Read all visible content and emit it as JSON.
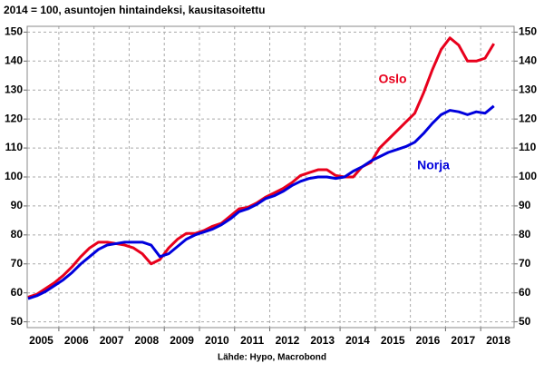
{
  "chart_data": {
    "type": "line",
    "title": "2014 = 100, asuntojen hintaindeksi, kausitasoitettu",
    "source": "Lähde: Hypo, Macrobond",
    "x": [
      2005.125,
      2005.375,
      2005.625,
      2005.875,
      2006.125,
      2006.375,
      2006.625,
      2006.875,
      2007.125,
      2007.375,
      2007.625,
      2007.875,
      2008.125,
      2008.375,
      2008.625,
      2008.875,
      2009.125,
      2009.375,
      2009.625,
      2009.875,
      2010.125,
      2010.375,
      2010.625,
      2010.875,
      2011.125,
      2011.375,
      2011.625,
      2011.875,
      2012.125,
      2012.375,
      2012.625,
      2012.875,
      2013.125,
      2013.375,
      2013.625,
      2013.875,
      2014.125,
      2014.375,
      2014.625,
      2014.875,
      2015.125,
      2015.375,
      2015.625,
      2015.875,
      2016.125,
      2016.375,
      2016.625,
      2016.875,
      2017.125,
      2017.375,
      2017.625,
      2017.875,
      2018.125,
      2018.375
    ],
    "series": [
      {
        "name": "Oslo",
        "color": "#e8001c",
        "values": [
          58.5,
          59.5,
          61.5,
          63.5,
          66,
          69,
          72.5,
          75.5,
          77.5,
          77.5,
          77,
          76.5,
          75.5,
          73.5,
          70,
          71.5,
          75.5,
          78.5,
          80.5,
          80.5,
          81.5,
          83,
          84,
          86.5,
          89,
          89.5,
          91,
          93,
          94.5,
          96,
          98,
          100.5,
          101.5,
          102.5,
          102.5,
          100.5,
          100,
          100,
          103.5,
          105,
          110,
          113,
          116,
          119,
          122,
          129,
          137,
          144,
          148,
          145.5,
          140,
          140,
          141,
          146
        ]
      },
      {
        "name": "Norja",
        "color": "#0000dd",
        "values": [
          58,
          59,
          60.5,
          62.5,
          64.5,
          67,
          70,
          72.5,
          75,
          76.5,
          77,
          77.5,
          77.5,
          77.5,
          76.5,
          72.5,
          73.5,
          76,
          78.5,
          80,
          81,
          82,
          83.5,
          85.5,
          88,
          89,
          90.5,
          92.5,
          93.5,
          95,
          97,
          98.5,
          99.5,
          100,
          100,
          99.5,
          100,
          102,
          103.5,
          105.5,
          107,
          108.5,
          109.5,
          110.5,
          112,
          115,
          118.5,
          121.5,
          123,
          122.5,
          121.5,
          122.5,
          122,
          124.5
        ]
      }
    ],
    "xlim": [
      2005.1,
      2018.95
    ],
    "xticks": [
      {
        "value": 2005.5,
        "label": "2005"
      },
      {
        "value": 2006.5,
        "label": "2006"
      },
      {
        "value": 2007.5,
        "label": "2007"
      },
      {
        "value": 2008.5,
        "label": "2008"
      },
      {
        "value": 2009.5,
        "label": "2009"
      },
      {
        "value": 2010.5,
        "label": "2010"
      },
      {
        "value": 2011.5,
        "label": "2011"
      },
      {
        "value": 2012.5,
        "label": "2012"
      },
      {
        "value": 2013.5,
        "label": "2013"
      },
      {
        "value": 2014.5,
        "label": "2014"
      },
      {
        "value": 2015.5,
        "label": "2015"
      },
      {
        "value": 2016.5,
        "label": "2016"
      },
      {
        "value": 2017.5,
        "label": "2017"
      },
      {
        "value": 2018.5,
        "label": "2018"
      }
    ],
    "xgrid": [
      2006,
      2007,
      2008,
      2009,
      2010,
      2011,
      2012,
      2013,
      2014,
      2015,
      2016,
      2017,
      2018
    ],
    "ylim": [
      48,
      152
    ],
    "yticks": [
      50,
      60,
      70,
      80,
      90,
      100,
      110,
      120,
      130,
      140,
      150
    ],
    "y2lim": [
      48,
      152
    ],
    "y2ticks": [
      50,
      60,
      70,
      80,
      90,
      100,
      110,
      120,
      130,
      140,
      150
    ],
    "grid": true
  }
}
